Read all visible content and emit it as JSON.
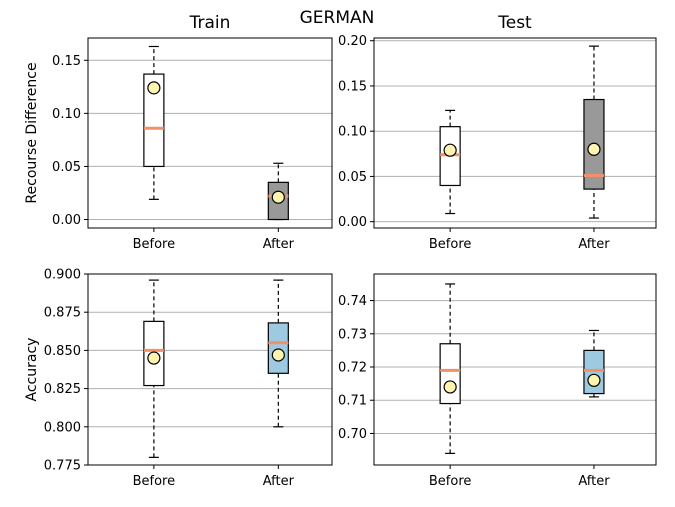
{
  "figure_title": "GERMAN",
  "colors": {
    "before_fill": "#ffffff",
    "after_fill_recourse": "#999999",
    "after_fill_accuracy": "#9ecae1",
    "median": "#f39067",
    "mean_marker_fill": "#fff5b0",
    "grid": "#b0b0b0"
  },
  "chart_data": [
    {
      "type": "box",
      "panel": "train-recourse",
      "title": "Train",
      "xlabel": "",
      "ylabel": "Recourse Difference",
      "ylim": [
        -0.008,
        0.171
      ],
      "yticks": [
        0.0,
        0.05,
        0.1,
        0.15
      ],
      "ytick_labels": [
        "0.00",
        "0.05",
        "0.10",
        "0.15"
      ],
      "grid": true,
      "categories": [
        "Before",
        "After"
      ],
      "boxes": [
        {
          "whisker_low": 0.019,
          "q1": 0.05,
          "median": 0.086,
          "q3": 0.137,
          "whisker_high": 0.163,
          "mean": 0.124
        },
        {
          "whisker_low": 0.0,
          "q1": 0.0,
          "median": 0.022,
          "q3": 0.035,
          "whisker_high": 0.053,
          "mean": 0.021
        }
      ]
    },
    {
      "type": "box",
      "panel": "test-recourse",
      "title": "Test",
      "xlabel": "",
      "ylabel": "",
      "ylim": [
        -0.007,
        0.203
      ],
      "yticks": [
        0.0,
        0.05,
        0.1,
        0.15,
        0.2
      ],
      "ytick_labels": [
        "0.00",
        "0.05",
        "0.10",
        "0.15",
        "0.20"
      ],
      "grid": true,
      "categories": [
        "Before",
        "After"
      ],
      "boxes": [
        {
          "whisker_low": 0.009,
          "q1": 0.04,
          "median": 0.074,
          "q3": 0.105,
          "whisker_high": 0.123,
          "mean": 0.079
        },
        {
          "whisker_low": 0.004,
          "q1": 0.036,
          "median": 0.051,
          "q3": 0.135,
          "whisker_high": 0.194,
          "mean": 0.08
        }
      ]
    },
    {
      "type": "box",
      "panel": "train-accuracy",
      "title": "",
      "xlabel": "",
      "ylabel": "Accuracy",
      "ylim": [
        0.775,
        0.9
      ],
      "yticks": [
        0.775,
        0.8,
        0.825,
        0.85,
        0.875,
        0.9
      ],
      "ytick_labels": [
        "0.775",
        "0.800",
        "0.825",
        "0.850",
        "0.875",
        "0.900"
      ],
      "grid": true,
      "categories": [
        "Before",
        "After"
      ],
      "boxes": [
        {
          "whisker_low": 0.78,
          "q1": 0.827,
          "median": 0.85,
          "q3": 0.869,
          "whisker_high": 0.896,
          "mean": 0.845
        },
        {
          "whisker_low": 0.8,
          "q1": 0.835,
          "median": 0.855,
          "q3": 0.868,
          "whisker_high": 0.896,
          "mean": 0.847
        }
      ]
    },
    {
      "type": "box",
      "panel": "test-accuracy",
      "title": "",
      "xlabel": "",
      "ylabel": "",
      "ylim": [
        0.6905,
        0.748
      ],
      "yticks": [
        0.7,
        0.71,
        0.72,
        0.73,
        0.74
      ],
      "ytick_labels": [
        "0.70",
        "0.71",
        "0.72",
        "0.73",
        "0.74"
      ],
      "grid": true,
      "categories": [
        "Before",
        "After"
      ],
      "boxes": [
        {
          "whisker_low": 0.694,
          "q1": 0.709,
          "median": 0.719,
          "q3": 0.727,
          "whisker_high": 0.745,
          "mean": 0.714
        },
        {
          "whisker_low": 0.711,
          "q1": 0.712,
          "median": 0.719,
          "q3": 0.725,
          "whisker_high": 0.731,
          "mean": 0.716
        }
      ]
    }
  ]
}
